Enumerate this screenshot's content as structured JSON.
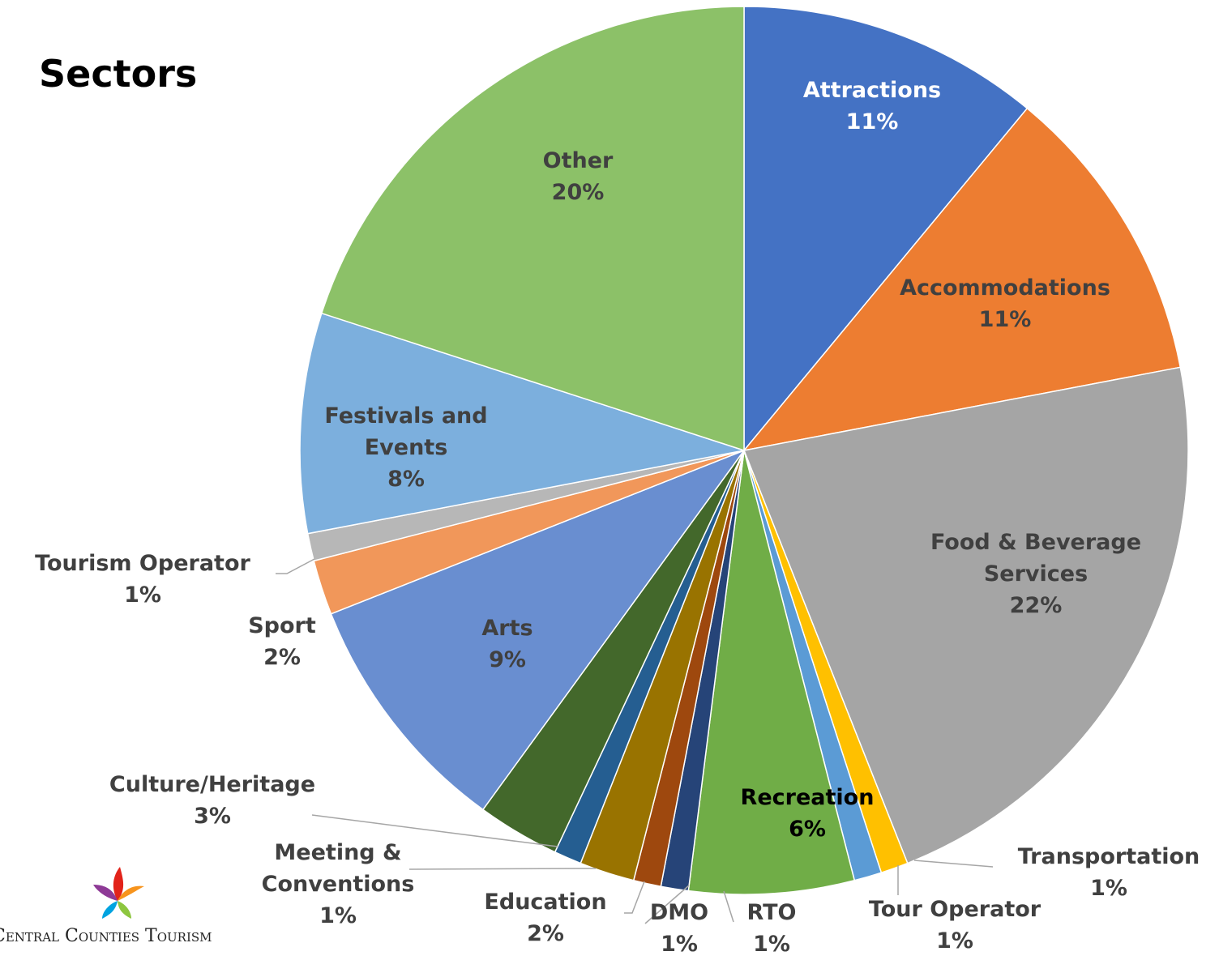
{
  "chart_data": {
    "type": "pie",
    "title": "Sectors",
    "logo": "Central Counties Tourism",
    "categories": [
      "Attractions",
      "Accommodations",
      "Food & Beverage Services",
      "Transportation",
      "Tour Operator",
      "Recreation",
      "RTO",
      "DMO",
      "Education",
      "Meeting & Conventions",
      "Culture/Heritage",
      "Arts",
      "Sport",
      "Tourism Operator",
      "Festivals and Events",
      "Other"
    ],
    "values": [
      11,
      11,
      22,
      1,
      1,
      6,
      1,
      1,
      2,
      1,
      3,
      9,
      2,
      1,
      8,
      20
    ],
    "value_labels": [
      "11%",
      "11%",
      "22%",
      "1%",
      "1%",
      "6%",
      "1%",
      "1%",
      "2%",
      "1%",
      "3%",
      "9%",
      "2%",
      "1%",
      "8%",
      "20%"
    ],
    "colors": [
      "#4472c4",
      "#ed7d31",
      "#a5a5a5",
      "#ffc000",
      "#5b9bd5",
      "#70ad47",
      "#264478",
      "#9e480e",
      "#997300",
      "#255e91",
      "#43682b",
      "#698ed0",
      "#f1975a",
      "#b7b7b7",
      "#7cafdd",
      "#8cc168"
    ]
  }
}
